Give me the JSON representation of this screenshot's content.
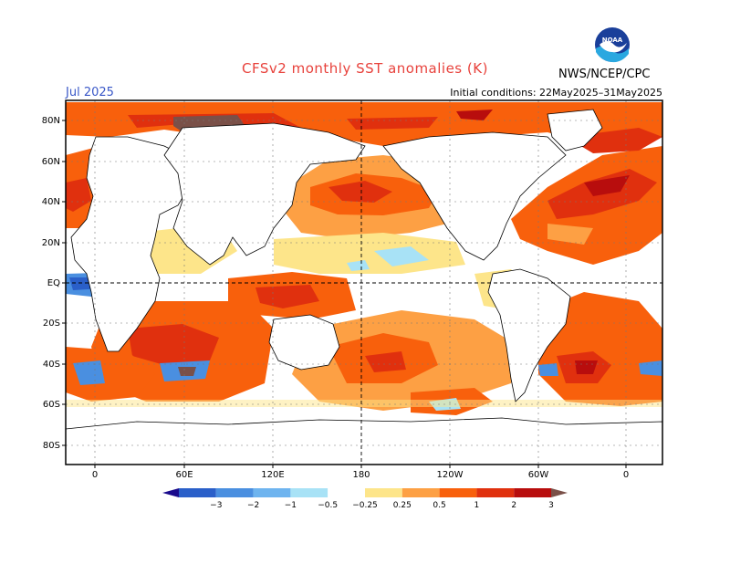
{
  "title": "CFSv2 monthly SST anomalies (K)",
  "month": "Jul 2025",
  "initial_conditions": "Initial conditions: 22May2025–31May2025",
  "org": "NWS/NCEP/CPC",
  "logo_text": "NOAA",
  "lat_labels": [
    "80N",
    "60N",
    "40N",
    "20N",
    "EQ",
    "20S",
    "40S",
    "60S",
    "80S"
  ],
  "lon_labels": [
    "0",
    "60E",
    "120E",
    "180",
    "120W",
    "60W",
    "0"
  ],
  "colorbar": {
    "ticks": [
      "−3",
      "−2",
      "−1",
      "−0.5",
      "−0.25",
      "0.25",
      "0.5",
      "1",
      "2",
      "3"
    ],
    "colors": [
      "#1a0a8c",
      "#2a5fc9",
      "#4a8fe0",
      "#6eb4ef",
      "#a8e2f6",
      "#ffffff",
      "#fde58a",
      "#fda044",
      "#f8600c",
      "#e0300e",
      "#b80d0d",
      "#7a5048"
    ]
  }
}
